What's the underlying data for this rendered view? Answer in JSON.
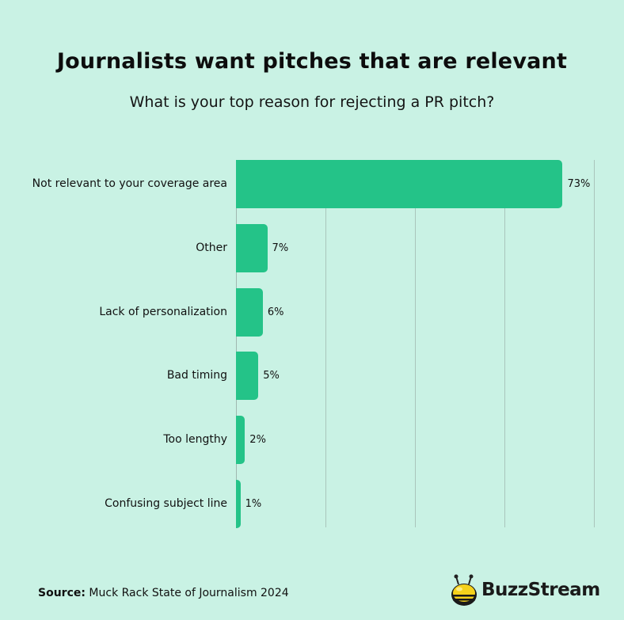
{
  "header": {
    "title": "Journalists want pitches that are relevant",
    "subtitle": "What is your top reason for rejecting a PR pitch?"
  },
  "footer": {
    "source_label": "Source:",
    "source_text": "Muck Rack State of Journalism 2024",
    "logo_text": "BuzzStream",
    "logo_icon": "bee-icon"
  },
  "colors": {
    "background": "#c9f2e4",
    "bar": "#24c388",
    "gridline": "#a9c5bb",
    "text": "#111111"
  },
  "chart_data": {
    "type": "bar",
    "orientation": "horizontal",
    "title": "Journalists want pitches that are relevant",
    "subtitle": "What is your top reason for rejecting a PR pitch?",
    "categories": [
      "Not relevant to your coverage area",
      "Other",
      "Lack of personalization",
      "Bad timing",
      "Too lengthy",
      "Confusing subject line"
    ],
    "values": [
      73,
      7,
      6,
      5,
      2,
      1
    ],
    "value_labels": [
      "73%",
      "7%",
      "6%",
      "5%",
      "2%",
      "1%"
    ],
    "xlabel": "",
    "ylabel": "",
    "xlim": [
      0,
      80
    ],
    "gridlines_at": [
      0,
      20,
      40,
      60,
      80
    ],
    "grid": true,
    "legend": null,
    "source": "Muck Rack State of Journalism 2024"
  }
}
